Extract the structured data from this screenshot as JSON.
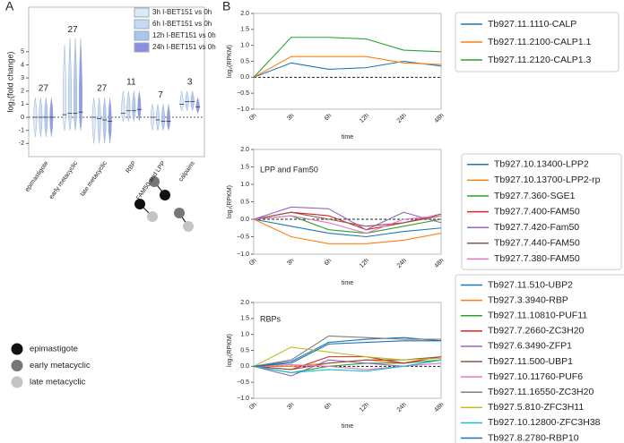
{
  "panel_labels": [
    "A",
    "B"
  ],
  "chart_data": [
    {
      "type": "violin",
      "ylabel": "log₂(fold change)",
      "categories": [
        "epimastigote",
        "early metacyclic",
        "late metacyclic",
        "RBP",
        "FAM50 and LPP",
        "calpains"
      ],
      "count_labels": [
        "27",
        "27",
        "27",
        "11",
        "7",
        "3"
      ],
      "ylim": [
        -3,
        8.4
      ],
      "yticks": [
        -2,
        -1,
        0,
        1,
        2,
        3,
        4,
        5
      ],
      "series": [
        {
          "name": "3h I-BET151 vs 0h",
          "color": "#dce9f7",
          "values": [
            0,
            0.2,
            0,
            0.3,
            0,
            1.0
          ],
          "lows": [
            -1.5,
            -1,
            -2,
            -0.3,
            -1,
            0.5
          ],
          "highs": [
            1.5,
            5.5,
            1.5,
            2,
            1,
            2
          ]
        },
        {
          "name": "6h I-BET151 vs 0h",
          "color": "#c6dbf2",
          "values": [
            0,
            0.3,
            -0.1,
            0.5,
            -0.2,
            1.2
          ],
          "lows": [
            -1.5,
            -1,
            -2,
            -0.3,
            -1,
            0.5
          ],
          "highs": [
            1.5,
            6,
            1.5,
            2,
            1,
            2
          ]
        },
        {
          "name": "12h I-BET151 vs 0h",
          "color": "#a9c7ec",
          "values": [
            0,
            0.3,
            -0.2,
            0.5,
            -0.3,
            1.2
          ],
          "lows": [
            -1.5,
            -1,
            -2,
            -0.3,
            -1,
            0.5
          ],
          "highs": [
            1.5,
            6,
            1.5,
            2,
            1,
            2
          ]
        },
        {
          "name": "24h I-BET151 vs 0h",
          "color": "#8b8fe0",
          "values": [
            0,
            0.4,
            -0.3,
            0.6,
            -0.3,
            0.8
          ],
          "lows": [
            -1.5,
            -1,
            -2,
            -0.3,
            -1,
            0.3
          ],
          "highs": [
            1.5,
            6,
            1.5,
            2,
            1,
            1.5
          ]
        }
      ],
      "stage_legend": [
        {
          "name": "epimastigote",
          "color": "#111111"
        },
        {
          "name": "early metacyclic",
          "color": "#777777"
        },
        {
          "name": "late metacyclic",
          "color": "#c4c4c4"
        }
      ]
    },
    {
      "type": "line",
      "ylabel": "log₂(RPKM)",
      "xlabel": "time",
      "categories": [
        "0h",
        "3h",
        "6h",
        "12h",
        "24h",
        "48h"
      ],
      "ylim": [
        -1,
        2
      ],
      "yticks": [
        {
          "value": -1,
          "label": "−1.0"
        },
        {
          "value": -0.5,
          "label": "−0.5"
        },
        {
          "value": 0,
          "label": "0.0"
        },
        {
          "value": 0.5,
          "label": "0.5"
        },
        {
          "value": 1,
          "label": "1.0"
        },
        {
          "value": 1.5,
          "label": "1.5"
        },
        {
          "value": 2,
          "label": "2.0"
        }
      ],
      "series": [
        {
          "name": "Tb927.11.1110-CALP",
          "color": "#1f77b4",
          "values": [
            0,
            0.45,
            0.25,
            0.3,
            0.5,
            0.35
          ]
        },
        {
          "name": "Tb927.11.2100-CALP1.1",
          "color": "#ff7f0e",
          "values": [
            0,
            0.65,
            0.65,
            0.65,
            0.45,
            0.4
          ]
        },
        {
          "name": "Tb927.11.2120-CALP1.3",
          "color": "#2ca02c",
          "values": [
            0,
            1.25,
            1.25,
            1.2,
            0.85,
            0.8
          ]
        }
      ]
    },
    {
      "type": "line",
      "title": "LPP and  Fam50",
      "ylabel": "log₂(RPKM)",
      "xlabel": "time",
      "categories": [
        "0h",
        "3h",
        "6h",
        "12h",
        "24h",
        "48h"
      ],
      "ylim": [
        -1,
        2
      ],
      "yticks": [
        {
          "value": -1,
          "label": "−1.0"
        },
        {
          "value": -0.5,
          "label": "−0.5"
        },
        {
          "value": 0,
          "label": "0.0"
        },
        {
          "value": 0.5,
          "label": "0.5"
        },
        {
          "value": 1,
          "label": "1.0"
        },
        {
          "value": 1.5,
          "label": "1.5"
        },
        {
          "value": 2,
          "label": "2.0"
        }
      ],
      "series": [
        {
          "name": "Tb927.10.13400-LPP2",
          "color": "#1f77b4",
          "values": [
            0,
            -0.2,
            -0.4,
            -0.5,
            -0.35,
            -0.25
          ]
        },
        {
          "name": "Tb927.10.13700-LPP2-rp",
          "color": "#ff7f0e",
          "values": [
            0,
            -0.5,
            -0.7,
            -0.7,
            -0.6,
            -0.4
          ]
        },
        {
          "name": "Tb927.7.360-SGE1",
          "color": "#2ca02c",
          "values": [
            0,
            0.1,
            -0.3,
            -0.4,
            -0.2,
            0
          ]
        },
        {
          "name": "Tb927.7.400-FAM50",
          "color": "#d62728",
          "values": [
            0,
            0.2,
            0.1,
            -0.3,
            -0.1,
            0.1
          ]
        },
        {
          "name": "Tb927.7.420-Fam50",
          "color": "#9467bd",
          "values": [
            0,
            0.35,
            0.3,
            -0.3,
            0.2,
            -0.1
          ]
        },
        {
          "name": "Tb927.7.440-FAM50",
          "color": "#8c564b",
          "values": [
            0,
            0.2,
            0,
            -0.2,
            -0.1,
            0.15
          ]
        },
        {
          "name": "Tb927.7.380-FAM50",
          "color": "#e377c2",
          "values": [
            0,
            0.1,
            -0.1,
            -0.4,
            0,
            0.1
          ]
        }
      ]
    },
    {
      "type": "line",
      "title": "RBPs",
      "ylabel": "log₂(RPKM)",
      "xlabel": "time",
      "categories": [
        "0h",
        "3h",
        "6h",
        "12h",
        "24h",
        "48h"
      ],
      "ylim": [
        -1,
        2
      ],
      "yticks": [
        {
          "value": -1,
          "label": "−1.0"
        },
        {
          "value": -0.5,
          "label": "−0.5"
        },
        {
          "value": 0,
          "label": "0.0"
        },
        {
          "value": 0.5,
          "label": "0.5"
        },
        {
          "value": 1,
          "label": "1.0"
        },
        {
          "value": 1.5,
          "label": "1.5"
        },
        {
          "value": 2,
          "label": "2.0"
        }
      ],
      "series": [
        {
          "name": "Tb927.11.510-UBP2",
          "color": "#1f77b4",
          "values": [
            0,
            0.15,
            0.75,
            0.85,
            0.9,
            0.8
          ]
        },
        {
          "name": "Tb927.3.3940-RBP",
          "color": "#ff7f0e",
          "values": [
            0,
            0,
            0.1,
            0.2,
            0.1,
            0.3
          ]
        },
        {
          "name": "Tb927.11.10810-PUF11",
          "color": "#2ca02c",
          "values": [
            0,
            -0.2,
            0,
            0.1,
            0.1,
            0.2
          ]
        },
        {
          "name": "Tb927.7.2660-ZC3H20",
          "color": "#d62728",
          "values": [
            0,
            -0.1,
            0.3,
            0.3,
            0.1,
            0.3
          ]
        },
        {
          "name": "Tb927.6.3490-ZFP1",
          "color": "#9467bd",
          "values": [
            0,
            -0.3,
            0.2,
            0.1,
            0,
            0.2
          ]
        },
        {
          "name": "Tb927.11.500-UBP1",
          "color": "#8c564b",
          "values": [
            0,
            -0.1,
            0.1,
            0.2,
            0.2,
            0.3
          ]
        },
        {
          "name": "Tb927.10.11760-PUF6",
          "color": "#e377c2",
          "values": [
            0,
            0.05,
            0,
            -0.1,
            0,
            0.1
          ]
        },
        {
          "name": "Tb927.11.16550-ZC3H20",
          "color": "#7f7f7f",
          "values": [
            0,
            0.2,
            0.95,
            0.9,
            0.85,
            0.85
          ]
        },
        {
          "name": "Tb927.5.810-ZFC3H11",
          "color": "#bcbd22",
          "values": [
            0,
            0.6,
            0.45,
            0.3,
            0.2,
            0.25
          ]
        },
        {
          "name": "Tb927.10.12800-ZFC3H38",
          "color": "#17becf",
          "values": [
            0,
            -0.2,
            -0.1,
            -0.15,
            0,
            0.2
          ]
        },
        {
          "name": "Tb927.8.2780-RBP10",
          "color": "#1f6fb4",
          "values": [
            0,
            0.1,
            0.7,
            0.75,
            0.8,
            0.8
          ]
        }
      ]
    }
  ]
}
